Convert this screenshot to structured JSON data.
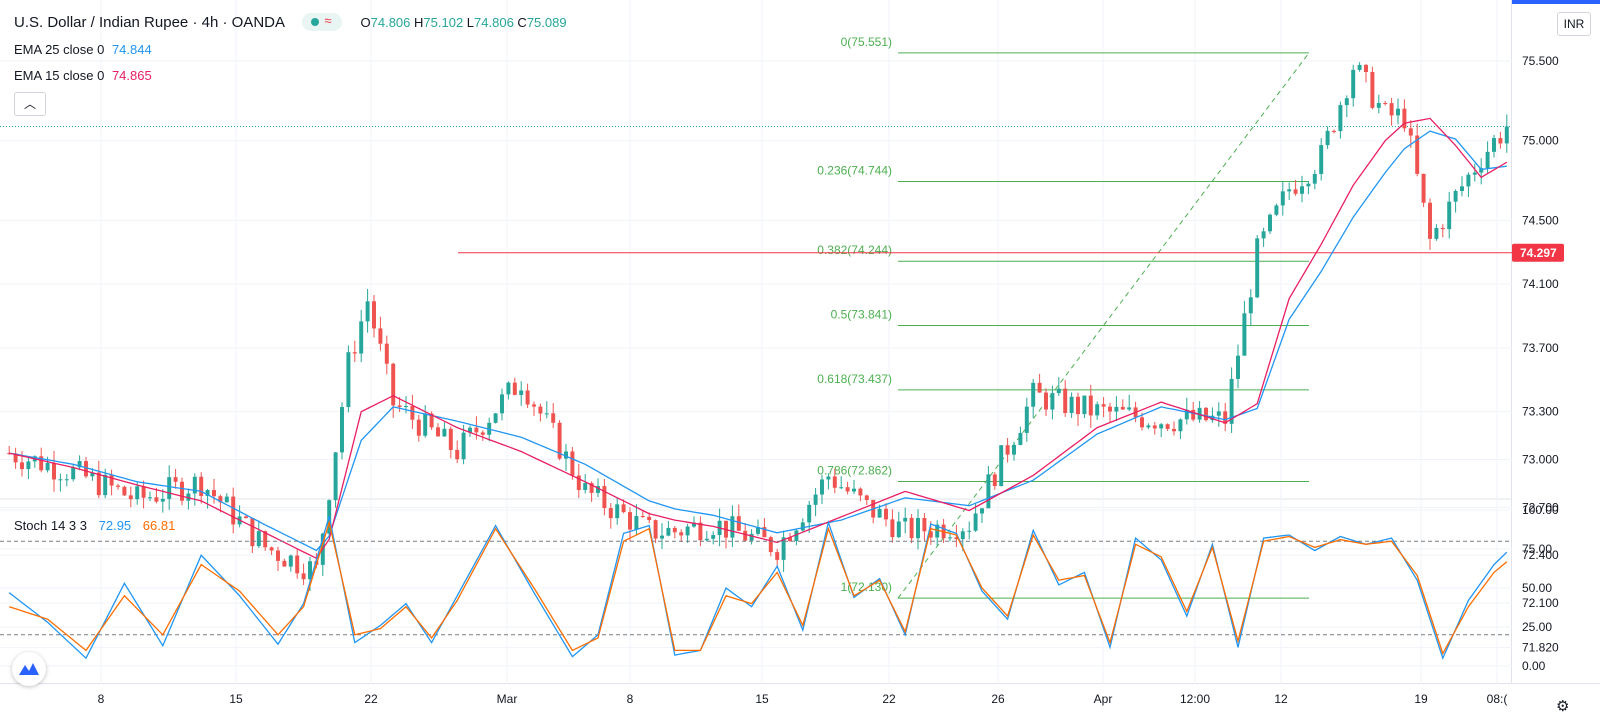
{
  "header": {
    "symbol": "U.S. Dollar / Indian Rupee",
    "interval": "4h",
    "exchange": "OANDA",
    "open": "74.806",
    "high": "75.102",
    "low": "74.806",
    "close": "75.089",
    "open_label": "O",
    "high_label": "H",
    "low_label": "L",
    "close_label": "C"
  },
  "indicators": {
    "ema25": {
      "label": "EMA 25 close 0",
      "value": "74.844",
      "color": "#2196f3"
    },
    "ema15": {
      "label": "EMA 15 close 0",
      "value": "74.865",
      "color": "#e91e63"
    },
    "stoch": {
      "label": "Stoch 14 3 3",
      "k_value": "72.95",
      "d_value": "66.81",
      "k_color": "#2196f3",
      "d_color": "#ff6d00"
    }
  },
  "currency_button": "INR",
  "collapse_icon": "chevron-up-icon",
  "settings_icon": "gear-icon",
  "logo_icon": "tradingview-logo-icon",
  "colors": {
    "up": "#26a69a",
    "down": "#ef5350",
    "fib": "#4caf50",
    "hline": "#f23645"
  },
  "chart_data": [
    {
      "type": "candlestick",
      "title": "U.S. Dollar / Indian Rupee, 4h, OANDA",
      "ylim": [
        71.82,
        75.7
      ],
      "y_ticks": [
        "75.500",
        "75.000",
        "74.500",
        "74.100",
        "73.700",
        "73.300",
        "73.000",
        "72.700",
        "72.400",
        "72.100",
        "71.820"
      ],
      "x_ticks": [
        "8",
        "15",
        "22",
        "Mar",
        "8",
        "15",
        "22",
        "26",
        "Apr",
        "12:00",
        "12",
        "19",
        "08:("
      ],
      "current_price": "74.297",
      "horizontal_line": 74.297,
      "fibonacci": {
        "levels": [
          {
            "label": "0(75.551)",
            "value": 75.551
          },
          {
            "label": "0.236(74.744)",
            "value": 74.744
          },
          {
            "label": "0.382(74.244)",
            "value": 74.244
          },
          {
            "label": "0.5(73.841)",
            "value": 73.841
          },
          {
            "label": "0.618(73.437)",
            "value": 73.437
          },
          {
            "label": "0.786(72.862)",
            "value": 72.862
          },
          {
            "label": "1(72.130)",
            "value": 72.13
          }
        ]
      },
      "series": [
        {
          "name": "EMA 25 close 0",
          "color": "#2196f3",
          "x": [
            0,
            10,
            20,
            30,
            40,
            48,
            50,
            55,
            60,
            70,
            80,
            90,
            100,
            104,
            110,
            120,
            130,
            140,
            150,
            160,
            170,
            180,
            190,
            195,
            200,
            205,
            210,
            215,
            218,
            222,
            226,
            230,
            234
          ],
          "values": [
            73.04,
            72.97,
            72.86,
            72.8,
            72.59,
            72.43,
            72.52,
            73.12,
            73.33,
            73.24,
            73.14,
            72.97,
            72.74,
            72.69,
            72.65,
            72.54,
            72.62,
            72.76,
            72.71,
            72.87,
            73.16,
            73.33,
            73.25,
            73.32,
            73.88,
            74.18,
            74.52,
            74.8,
            74.95,
            75.06,
            75.01,
            74.82,
            74.84
          ]
        },
        {
          "name": "EMA 15 close 0",
          "color": "#e91e63",
          "x": [
            0,
            10,
            20,
            30,
            40,
            48,
            50,
            55,
            60,
            70,
            80,
            90,
            100,
            104,
            110,
            120,
            130,
            140,
            150,
            160,
            170,
            180,
            190,
            195,
            200,
            205,
            210,
            215,
            218,
            222,
            226,
            230,
            234
          ],
          "values": [
            73.04,
            72.95,
            72.84,
            72.74,
            72.54,
            72.38,
            72.5,
            73.3,
            73.4,
            73.2,
            73.05,
            72.86,
            72.66,
            72.62,
            72.58,
            72.48,
            72.64,
            72.8,
            72.68,
            72.9,
            73.2,
            73.36,
            73.23,
            73.35,
            74.01,
            74.35,
            74.72,
            75.0,
            75.11,
            75.14,
            74.97,
            74.77,
            74.865
          ]
        }
      ],
      "ohlc_key_points": {
        "x": [
          0,
          10,
          20,
          30,
          40,
          48,
          53,
          56,
          60,
          70,
          80,
          90,
          100,
          104,
          110,
          120,
          128,
          134,
          140,
          150,
          160,
          170,
          180,
          190,
          195,
          200,
          205,
          210,
          215,
          218,
          222,
          226,
          230,
          234
        ],
        "close": [
          73.04,
          72.92,
          72.75,
          72.86,
          72.45,
          72.3,
          73.6,
          74.0,
          73.35,
          73.05,
          73.5,
          72.8,
          72.55,
          72.55,
          72.6,
          72.45,
          72.9,
          72.7,
          72.55,
          72.6,
          73.4,
          73.3,
          73.25,
          73.25,
          74.3,
          74.7,
          74.9,
          75.47,
          75.16,
          75.15,
          74.37,
          74.65,
          74.9,
          75.089
        ]
      }
    },
    {
      "type": "line",
      "title": "Stoch 14 3 3",
      "ylim": [
        0,
        100
      ],
      "y_ticks": [
        "100.00",
        "75.00",
        "50.00",
        "25.00",
        "0.00"
      ],
      "bands": [
        80,
        20
      ],
      "series": [
        {
          "name": "%K",
          "color": "#2196f3",
          "x": [
            0,
            6,
            12,
            18,
            24,
            30,
            36,
            42,
            46,
            50,
            54,
            58,
            62,
            66,
            70,
            76,
            82,
            88,
            92,
            96,
            100,
            104,
            108,
            112,
            116,
            120,
            124,
            128,
            132,
            136,
            140,
            144,
            148,
            152,
            156,
            160,
            164,
            168,
            172,
            176,
            180,
            184,
            188,
            192,
            196,
            200,
            204,
            208,
            212,
            216,
            220,
            224,
            228,
            232,
            234
          ],
          "values": [
            47,
            28,
            5,
            53,
            13,
            71,
            45,
            14,
            40,
            96,
            15,
            26,
            40,
            15,
            45,
            90,
            47,
            6,
            20,
            85,
            90,
            7,
            10,
            50,
            38,
            64,
            23,
            92,
            44,
            56,
            20,
            91,
            85,
            48,
            30,
            87,
            52,
            60,
            12,
            82,
            68,
            32,
            78,
            12,
            82,
            84,
            74,
            83,
            78,
            82,
            55,
            5,
            42,
            65,
            72.95
          ]
        },
        {
          "name": "%D",
          "color": "#ff6d00",
          "x": [
            0,
            6,
            12,
            18,
            24,
            30,
            36,
            42,
            46,
            50,
            54,
            58,
            62,
            66,
            70,
            76,
            82,
            88,
            92,
            96,
            100,
            104,
            108,
            112,
            116,
            120,
            124,
            128,
            132,
            136,
            140,
            144,
            148,
            152,
            156,
            160,
            164,
            168,
            172,
            176,
            180,
            184,
            188,
            192,
            196,
            200,
            204,
            208,
            212,
            216,
            220,
            224,
            228,
            232,
            234
          ],
          "values": [
            38,
            30,
            10,
            45,
            20,
            65,
            48,
            20,
            38,
            92,
            20,
            24,
            38,
            18,
            42,
            88,
            50,
            10,
            18,
            80,
            88,
            10,
            10,
            45,
            40,
            60,
            26,
            88,
            45,
            55,
            22,
            88,
            84,
            50,
            32,
            84,
            55,
            58,
            15,
            78,
            70,
            35,
            76,
            16,
            80,
            83,
            76,
            81,
            78,
            80,
            58,
            8,
            38,
            60,
            66.81
          ]
        }
      ]
    }
  ]
}
